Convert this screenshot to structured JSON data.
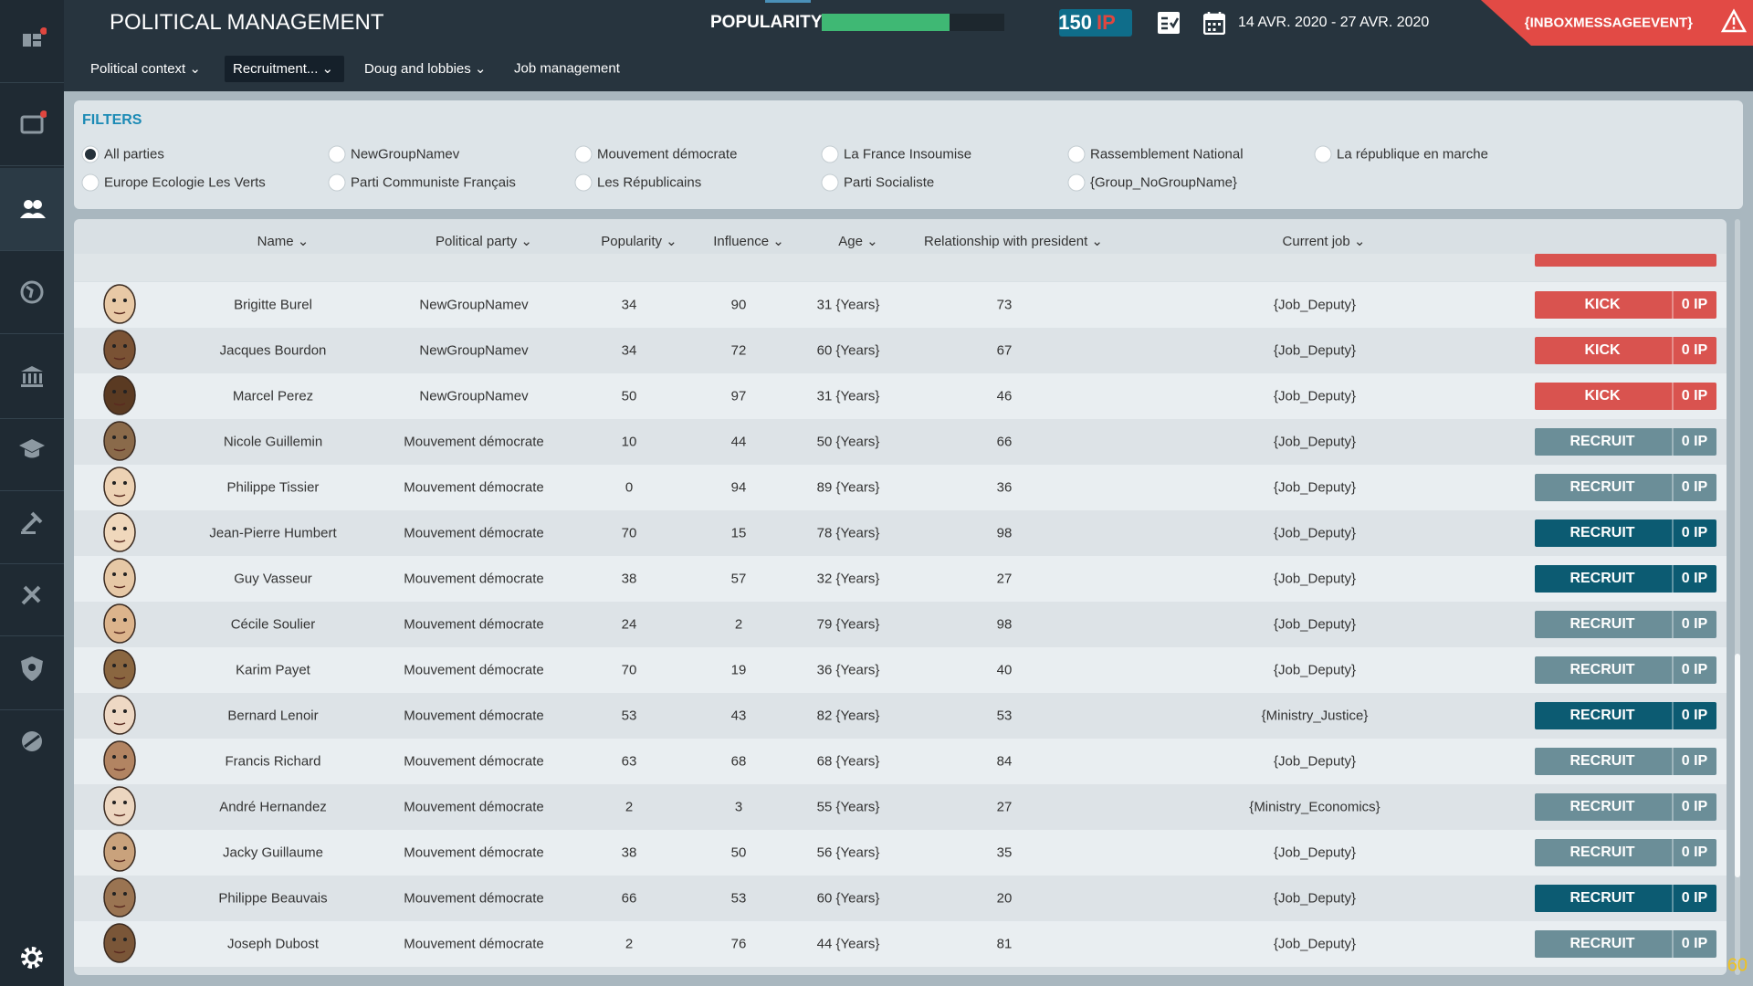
{
  "header": {
    "title": "POLITICAL MANAGEMENT",
    "popularity_label": "POPULARITY",
    "popularity": 70,
    "ip_value": "150",
    "ip_unit": "IP",
    "date_range": "14 AVR. 2020 - 27 AVR. 2020",
    "inbox": "{INBOXMESSAGEEVENT}"
  },
  "tabs": [
    "Political context",
    "Recruitment...",
    "Doug and lobbies",
    "Job management"
  ],
  "selected_tab": 1,
  "filters": {
    "title": "FILTERS",
    "selected": 0,
    "options": [
      "All parties",
      "NewGroupNamev",
      "Mouvement démocrate",
      "La France Insoumise",
      "Rassemblement National",
      "La république en marche",
      "Europe Ecologie Les Verts",
      "Parti Communiste Français",
      "Les Républicains",
      "Parti Socialiste",
      "{Group_NoGroupName}"
    ]
  },
  "table": {
    "columns": [
      "Name",
      "Political party",
      "Popularity",
      "Influence",
      "Age",
      "Relationship with president",
      "Current job"
    ],
    "rows": [
      {
        "name": "Brigitte Burel",
        "party": "NewGroupNamev",
        "popularity": 34,
        "influence": 90,
        "age": "31 {Years}",
        "relationship": 73,
        "job": "{Job_Deputy}",
        "action": "KICK",
        "cost": "0 IP",
        "button_color": "#d9534f"
      },
      {
        "name": "Jacques Bourdon",
        "party": "NewGroupNamev",
        "popularity": 34,
        "influence": 72,
        "age": "60 {Years}",
        "relationship": 67,
        "job": "{Job_Deputy}",
        "action": "KICK",
        "cost": "0 IP",
        "button_color": "#d9534f"
      },
      {
        "name": "Marcel Perez",
        "party": "NewGroupNamev",
        "popularity": 50,
        "influence": 97,
        "age": "31 {Years}",
        "relationship": 46,
        "job": "{Job_Deputy}",
        "action": "KICK",
        "cost": "0 IP",
        "button_color": "#d9534f"
      },
      {
        "name": "Nicole Guillemin",
        "party": "Mouvement démocrate",
        "popularity": 10,
        "influence": 44,
        "age": "50 {Years}",
        "relationship": 66,
        "job": "{Job_Deputy}",
        "action": "RECRUIT",
        "cost": "0 IP",
        "button_color": "#6b8e98"
      },
      {
        "name": "Philippe Tissier",
        "party": "Mouvement démocrate",
        "popularity": 0,
        "influence": 94,
        "age": "89 {Years}",
        "relationship": 36,
        "job": "{Job_Deputy}",
        "action": "RECRUIT",
        "cost": "0 IP",
        "button_color": "#6b8e98"
      },
      {
        "name": "Jean-Pierre Humbert",
        "party": "Mouvement démocrate",
        "popularity": 70,
        "influence": 15,
        "age": "78 {Years}",
        "relationship": 98,
        "job": "{Job_Deputy}",
        "action": "RECRUIT",
        "cost": "0 IP",
        "button_color": "#0c5b72"
      },
      {
        "name": "Guy Vasseur",
        "party": "Mouvement démocrate",
        "popularity": 38,
        "influence": 57,
        "age": "32 {Years}",
        "relationship": 27,
        "job": "{Job_Deputy}",
        "action": "RECRUIT",
        "cost": "0 IP",
        "button_color": "#0c5b72"
      },
      {
        "name": "Cécile Soulier",
        "party": "Mouvement démocrate",
        "popularity": 24,
        "influence": 2,
        "age": "79 {Years}",
        "relationship": 98,
        "job": "{Job_Deputy}",
        "action": "RECRUIT",
        "cost": "0 IP",
        "button_color": "#6b8e98"
      },
      {
        "name": "Karim Payet",
        "party": "Mouvement démocrate",
        "popularity": 70,
        "influence": 19,
        "age": "36 {Years}",
        "relationship": 40,
        "job": "{Job_Deputy}",
        "action": "RECRUIT",
        "cost": "0 IP",
        "button_color": "#6b8e98"
      },
      {
        "name": "Bernard Lenoir",
        "party": "Mouvement démocrate",
        "popularity": 53,
        "influence": 43,
        "age": "82 {Years}",
        "relationship": 53,
        "job": "{Ministry_Justice}",
        "action": "RECRUIT",
        "cost": "0 IP",
        "button_color": "#0c5b72"
      },
      {
        "name": "Francis Richard",
        "party": "Mouvement démocrate",
        "popularity": 63,
        "influence": 68,
        "age": "68 {Years}",
        "relationship": 84,
        "job": "{Job_Deputy}",
        "action": "RECRUIT",
        "cost": "0 IP",
        "button_color": "#6b8e98"
      },
      {
        "name": "André Hernandez",
        "party": "Mouvement démocrate",
        "popularity": 2,
        "influence": 3,
        "age": "55 {Years}",
        "relationship": 27,
        "job": "{Ministry_Economics}",
        "action": "RECRUIT",
        "cost": "0 IP",
        "button_color": "#6b8e98"
      },
      {
        "name": "Jacky Guillaume",
        "party": "Mouvement démocrate",
        "popularity": 38,
        "influence": 50,
        "age": "56 {Years}",
        "relationship": 35,
        "job": "{Job_Deputy}",
        "action": "RECRUIT",
        "cost": "0 IP",
        "button_color": "#6b8e98"
      },
      {
        "name": "Philippe Beauvais",
        "party": "Mouvement démocrate",
        "popularity": 66,
        "influence": 53,
        "age": "60 {Years}",
        "relationship": 20,
        "job": "{Job_Deputy}",
        "action": "RECRUIT",
        "cost": "0 IP",
        "button_color": "#0c5b72"
      },
      {
        "name": "Joseph Dubost",
        "party": "Mouvement démocrate",
        "popularity": 2,
        "influence": 76,
        "age": "44 {Years}",
        "relationship": 81,
        "job": "{Job_Deputy}",
        "action": "RECRUIT",
        "cost": "0 IP",
        "button_color": "#6b8e98"
      }
    ]
  },
  "fps": "60"
}
